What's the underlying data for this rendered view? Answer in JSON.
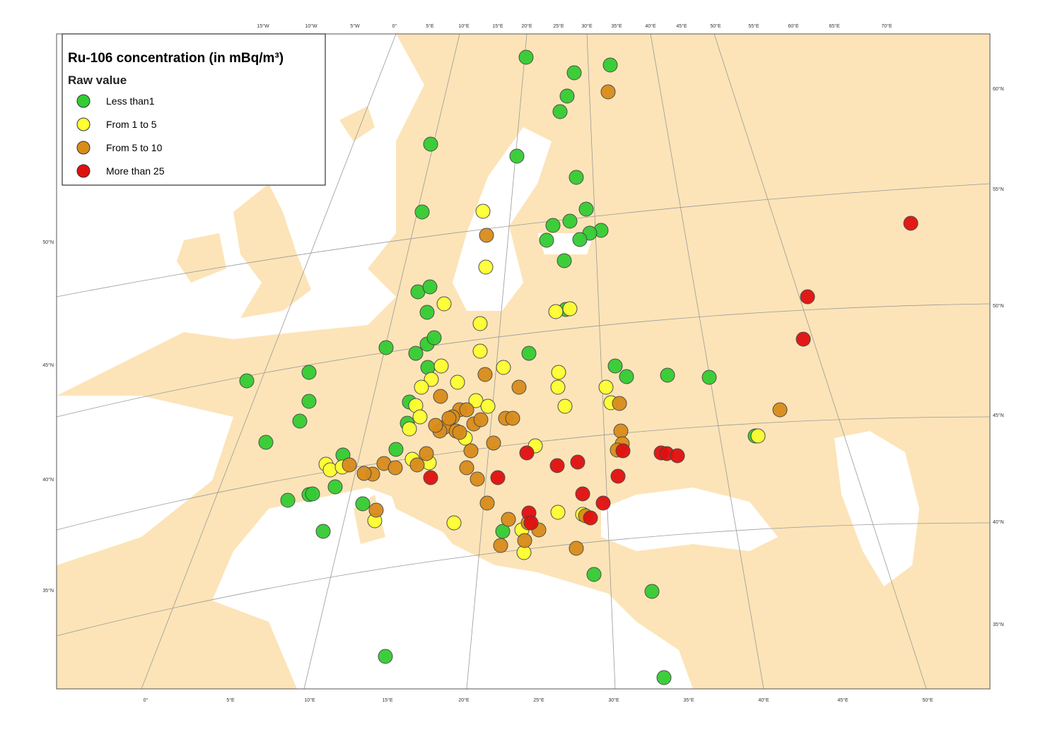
{
  "legend": {
    "title": "Ru-106 concentration (in mBq/m³)",
    "subtitle": "Raw value",
    "items": [
      {
        "label": "Less than1",
        "color": "#33cc33"
      },
      {
        "label": "From 1 to 5",
        "color": "#ffff33"
      },
      {
        "label": "From 5 to 10",
        "color": "#d98c1a"
      },
      {
        "label": "More than 25",
        "color": "#e01010"
      }
    ]
  },
  "graticule": {
    "top": [
      "15°W",
      "10°W",
      "5°W",
      "0°",
      "5°E",
      "10°E",
      "15°E",
      "20°E",
      "25°E",
      "30°E",
      "35°E",
      "40°E",
      "45°E",
      "50°E",
      "55°E",
      "60°E",
      "65°E",
      "70°E"
    ],
    "bottom": [
      "0°",
      "5°E",
      "10°E",
      "15°E",
      "20°E",
      "25°E",
      "30°E",
      "35°E",
      "40°E",
      "45°E",
      "50°E"
    ],
    "left": [
      "50°N",
      "45°N",
      "40°N",
      "35°N"
    ],
    "right": [
      "60°N",
      "55°N",
      "50°N",
      "45°N",
      "40°N",
      "35°N"
    ]
  }
}
